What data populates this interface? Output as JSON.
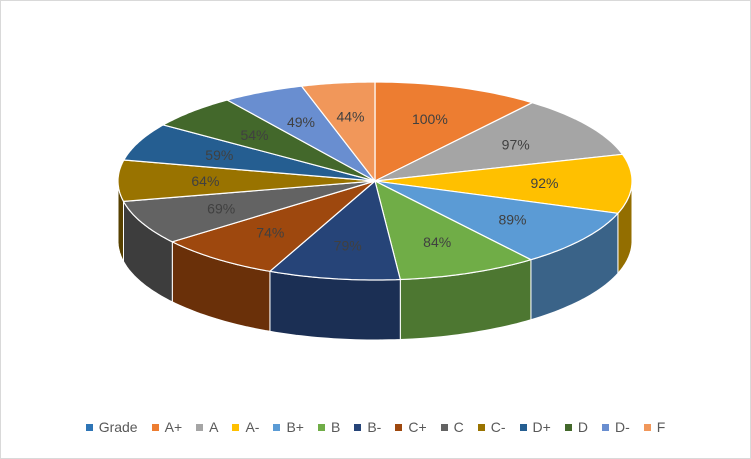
{
  "chart_data": {
    "type": "pie",
    "style": "3d",
    "title": "",
    "legend_position": "bottom",
    "legend": [
      {
        "label": "Grade",
        "color": "#2e75b6"
      },
      {
        "label": "A+",
        "color": "#ed7d31"
      },
      {
        "label": "A",
        "color": "#a5a5a5"
      },
      {
        "label": "A-",
        "color": "#ffc000"
      },
      {
        "label": "B+",
        "color": "#5b9bd5"
      },
      {
        "label": "B",
        "color": "#70ad47"
      },
      {
        "label": "B-",
        "color": "#264478"
      },
      {
        "label": "C+",
        "color": "#9e480e"
      },
      {
        "label": "C",
        "color": "#636363"
      },
      {
        "label": "C-",
        "color": "#997300"
      },
      {
        "label": "D+",
        "color": "#255e91"
      },
      {
        "label": "D",
        "color": "#43682b"
      },
      {
        "label": "D-",
        "color": "#698ed0"
      },
      {
        "label": "F",
        "color": "#f1975a"
      }
    ],
    "slices": [
      {
        "category": "A+",
        "value": 100,
        "label": "100%",
        "color": "#ed7d31"
      },
      {
        "category": "A",
        "value": 97,
        "label": "97%",
        "color": "#a5a5a5"
      },
      {
        "category": "A-",
        "value": 92,
        "label": "92%",
        "color": "#ffc000"
      },
      {
        "category": "B+",
        "value": 89,
        "label": "89%",
        "color": "#5b9bd5"
      },
      {
        "category": "B",
        "value": 84,
        "label": "84%",
        "color": "#70ad47"
      },
      {
        "category": "B-",
        "value": 79,
        "label": "79%",
        "color": "#264478"
      },
      {
        "category": "C+",
        "value": 74,
        "label": "74%",
        "color": "#9e480e"
      },
      {
        "category": "C",
        "value": 69,
        "label": "69%",
        "color": "#636363"
      },
      {
        "category": "C-",
        "value": 64,
        "label": "64%",
        "color": "#997300"
      },
      {
        "category": "D+",
        "value": 59,
        "label": "59%",
        "color": "#255e91"
      },
      {
        "category": "D",
        "value": 54,
        "label": "54%",
        "color": "#43682b"
      },
      {
        "category": "D-",
        "value": 49,
        "label": "49%",
        "color": "#698ed0"
      },
      {
        "category": "F",
        "value": 44,
        "label": "44%",
        "color": "#f1975a"
      }
    ]
  }
}
